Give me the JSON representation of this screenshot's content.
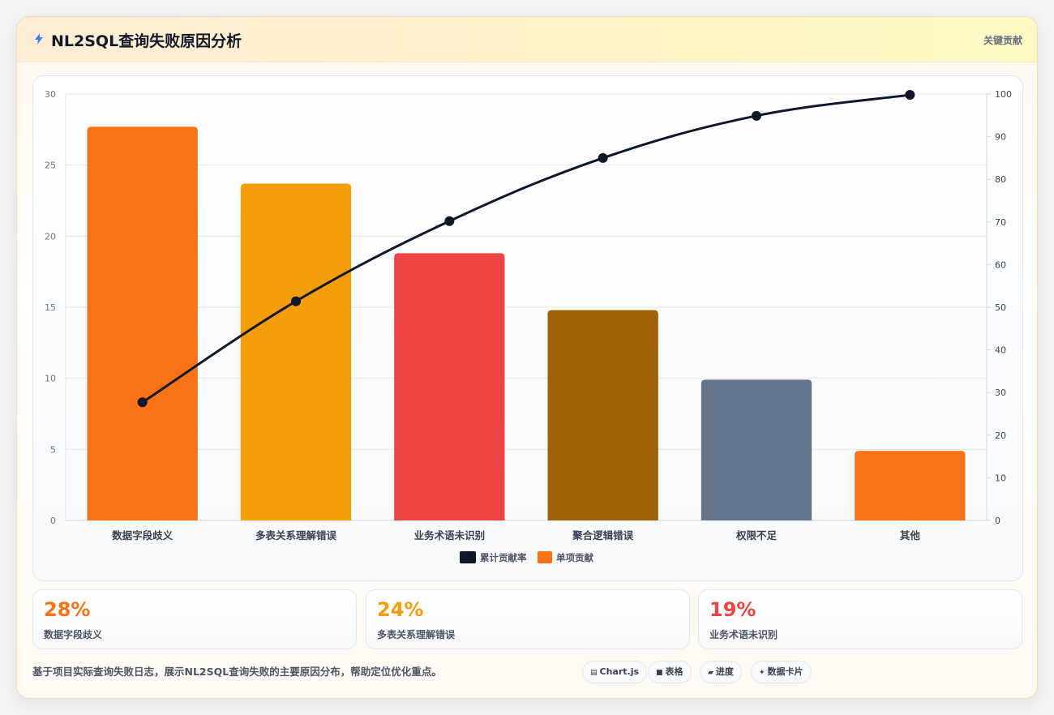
{
  "header": {
    "title": "NL2SQL查询失败原因分析",
    "tag": "关键贡献",
    "icon": "bolt-icon"
  },
  "chart_data": {
    "type": "bar",
    "categories": [
      "数据字段歧义",
      "多表关系理解错误",
      "业务术语未识别",
      "聚合逻辑错误",
      "权限不足",
      "其他"
    ],
    "series": [
      {
        "name": "单项贡献",
        "type": "bar",
        "values": [
          27.7,
          23.7,
          18.8,
          14.8,
          9.9,
          4.9
        ],
        "colors": [
          "#f97316",
          "#f59e0b",
          "#ef4444",
          "#a16207",
          "#64748b",
          "#f97316"
        ]
      },
      {
        "name": "累计贡献率",
        "type": "line",
        "axis": "right",
        "values": [
          27.7,
          51.4,
          70.2,
          85.0,
          94.9,
          99.8
        ],
        "color": "#0f172a"
      }
    ],
    "ylim_left": [
      0,
      30
    ],
    "yticks_left": [
      0,
      5,
      10,
      15,
      20,
      25,
      30
    ],
    "ylim_right": [
      0,
      100
    ],
    "yticks_right": [
      0,
      10,
      20,
      30,
      40,
      50,
      60,
      70,
      80,
      90,
      100
    ],
    "legend": "bottom-center",
    "grid": true
  },
  "stats": [
    {
      "value": "28%",
      "label": "数据字段歧义",
      "color": "#f97316"
    },
    {
      "value": "24%",
      "label": "多表关系理解错误",
      "color": "#f59e0b"
    },
    {
      "value": "19%",
      "label": "业务术语未识别",
      "color": "#ef4444"
    }
  ],
  "footer": {
    "description": "基于项目实际查询失败日志，展示NL2SQL查询失败的主要原因分布，帮助定位优化重点。",
    "pills": [
      {
        "icon": "chart-icon",
        "label": "Chart.js"
      },
      {
        "icon": "table-icon",
        "label": "表格"
      },
      {
        "icon": "progress-icon",
        "label": "进度"
      },
      {
        "icon": "sparkle-icon",
        "label": "数据卡片"
      }
    ]
  }
}
